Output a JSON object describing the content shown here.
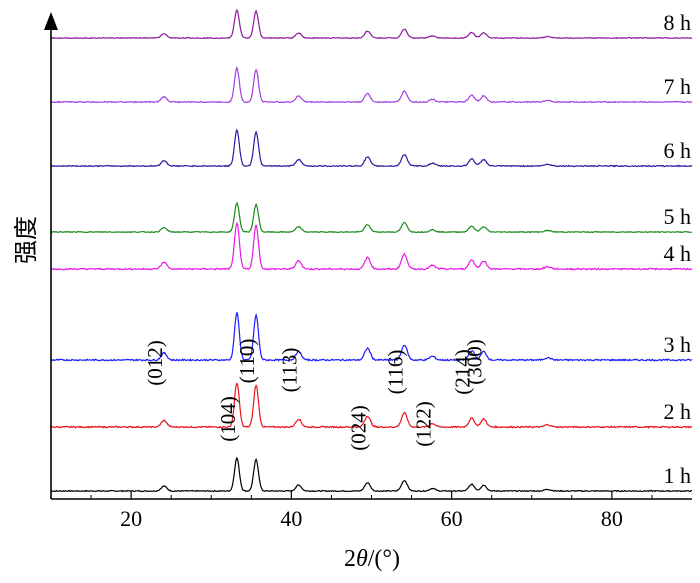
{
  "chart_data": {
    "type": "line",
    "title": "",
    "xlabel": "2θ/(°)",
    "xlabel_parts": {
      "prefix": "2",
      "italic": "θ",
      "suffix": "/(°)"
    },
    "ylabel": "强度",
    "xlim": [
      10,
      90
    ],
    "xticks": [
      20,
      40,
      60,
      80
    ],
    "grid": false,
    "legend": "series labels printed at right end of each curve",
    "peaks": [
      {
        "pos": 24.1,
        "h": 0.15,
        "w": 0.35
      },
      {
        "pos": 33.2,
        "h": 1.0,
        "w": 0.3
      },
      {
        "pos": 35.6,
        "h": 0.95,
        "w": 0.3
      },
      {
        "pos": 40.9,
        "h": 0.18,
        "w": 0.35
      },
      {
        "pos": 49.5,
        "h": 0.25,
        "w": 0.35
      },
      {
        "pos": 54.1,
        "h": 0.32,
        "w": 0.35
      },
      {
        "pos": 57.6,
        "h": 0.08,
        "w": 0.35
      },
      {
        "pos": 62.5,
        "h": 0.2,
        "w": 0.35
      },
      {
        "pos": 64.0,
        "h": 0.18,
        "w": 0.35
      },
      {
        "pos": 72.0,
        "h": 0.05,
        "w": 0.4
      }
    ],
    "series": [
      {
        "name": "1 h",
        "color": "#000000"
      },
      {
        "name": "2 h",
        "color": "#e8141c"
      },
      {
        "name": "3 h",
        "color": "#1a1aff"
      },
      {
        "name": "4 h",
        "color": "#e81ae8"
      },
      {
        "name": "5 h",
        "color": "#1a8a1a"
      },
      {
        "name": "6 h",
        "color": "#2a1aa0"
      },
      {
        "name": "7 h",
        "color": "#a040e0"
      },
      {
        "name": "8 h",
        "color": "#8a1a9a"
      }
    ],
    "annotations": [
      {
        "text": "(012)",
        "x": 24.1
      },
      {
        "text": "(104)",
        "x": 33.2
      },
      {
        "text": "(110)",
        "x": 35.6
      },
      {
        "text": "(113)",
        "x": 40.9
      },
      {
        "text": "(024)",
        "x": 49.5
      },
      {
        "text": "(116)",
        "x": 54.1
      },
      {
        "text": "(122)",
        "x": 57.6
      },
      {
        "text": "(214)",
        "x": 62.5
      },
      {
        "text": "(300)",
        "x": 64.0
      }
    ]
  }
}
